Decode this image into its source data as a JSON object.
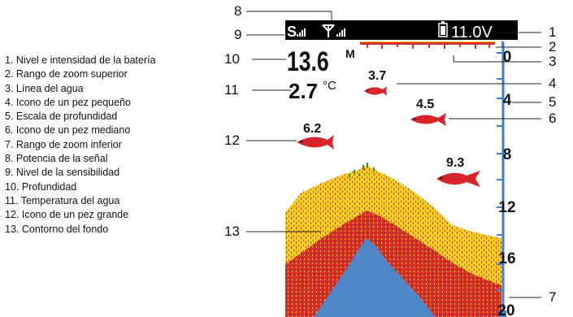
{
  "legend": [
    "1. Nivel e intensidad de la batería",
    "2. Rango de zoom superior",
    "3. Línea del agua",
    "4. Icono de un pez pequeño",
    "5. Escala de profundidad",
    "6. Icono de un pez mediano",
    "7. Rango de zoom inferior",
    "8. Potencia de la señal",
    "9. Nivel de la sensibilidad",
    "10. Profundidad",
    "11. Temperatura del agua",
    "12. Icono de un pez grande",
    "13. Contorno del fondo"
  ],
  "display": {
    "sensitivity_letter": "S",
    "battery_voltage": "11.0V",
    "depth_value": "13.6",
    "depth_unit": "M",
    "temperature_value": "2.7",
    "temperature_unit": "°C",
    "fish": [
      {
        "label": "3.7",
        "size": "small"
      },
      {
        "label": "4.5",
        "size": "medium"
      },
      {
        "label": "6.2",
        "size": "large"
      },
      {
        "label": "9.3",
        "size": "large"
      }
    ],
    "depth_scale": [
      "0",
      "4",
      "8",
      "12",
      "16",
      "20"
    ]
  },
  "callouts": [
    "1",
    "2",
    "3",
    "4",
    "5",
    "6",
    "7",
    "8",
    "9",
    "10",
    "11",
    "12",
    "13"
  ],
  "colors": {
    "screen_background": "#ffffff",
    "top_bar": "#000000",
    "scale_blue": "#3a7fd0",
    "fish_red": "#d8242a",
    "echo_yellow": "#f4d21c",
    "echo_red": "#e02d22",
    "bottom_blue": "#4f86c8",
    "text_dark": "#111111"
  }
}
